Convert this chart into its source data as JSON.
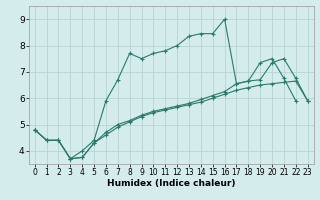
{
  "xlabel": "Humidex (Indice chaleur)",
  "bg_color": "#d4ecec",
  "grid_color": "#b8d4d4",
  "line_color": "#2a7a6a",
  "xlim": [
    -0.5,
    23.5
  ],
  "ylim": [
    3.5,
    9.5
  ],
  "xticks": [
    0,
    1,
    2,
    3,
    4,
    5,
    6,
    7,
    8,
    9,
    10,
    11,
    12,
    13,
    14,
    15,
    16,
    17,
    18,
    19,
    20,
    21,
    22,
    23
  ],
  "yticks": [
    4,
    5,
    6,
    7,
    8,
    9
  ],
  "series1_x": [
    0,
    1,
    2,
    3,
    4,
    5,
    6,
    7,
    8,
    9,
    10,
    11,
    12,
    13,
    14,
    15,
    16,
    17,
    18,
    19,
    20,
    21,
    22
  ],
  "series1_y": [
    4.8,
    4.4,
    4.4,
    3.7,
    4.0,
    4.4,
    5.9,
    6.7,
    7.7,
    7.5,
    7.7,
    7.8,
    8.0,
    8.35,
    8.45,
    8.45,
    9.0,
    6.55,
    6.65,
    7.35,
    7.5,
    6.75,
    5.9
  ],
  "series2_x": [
    0,
    1,
    2,
    3,
    4,
    5,
    6,
    7,
    8,
    9,
    10,
    11,
    12,
    13,
    14,
    15,
    16,
    17,
    18,
    19,
    20,
    21,
    22,
    23
  ],
  "series2_y": [
    4.8,
    4.4,
    4.4,
    3.7,
    3.75,
    4.3,
    4.6,
    4.9,
    5.1,
    5.3,
    5.45,
    5.55,
    5.65,
    5.75,
    5.85,
    6.0,
    6.15,
    6.3,
    6.4,
    6.5,
    6.55,
    6.6,
    6.65,
    5.9
  ],
  "series3_x": [
    0,
    1,
    2,
    3,
    4,
    5,
    6,
    7,
    8,
    9,
    10,
    11,
    12,
    13,
    14,
    15,
    16,
    17,
    18,
    19,
    20,
    21,
    22,
    23
  ],
  "series3_y": [
    4.8,
    4.4,
    4.4,
    3.7,
    3.75,
    4.3,
    4.7,
    5.0,
    5.15,
    5.35,
    5.5,
    5.6,
    5.7,
    5.8,
    5.95,
    6.1,
    6.25,
    6.55,
    6.65,
    6.7,
    7.35,
    7.5,
    6.75,
    5.9
  ]
}
